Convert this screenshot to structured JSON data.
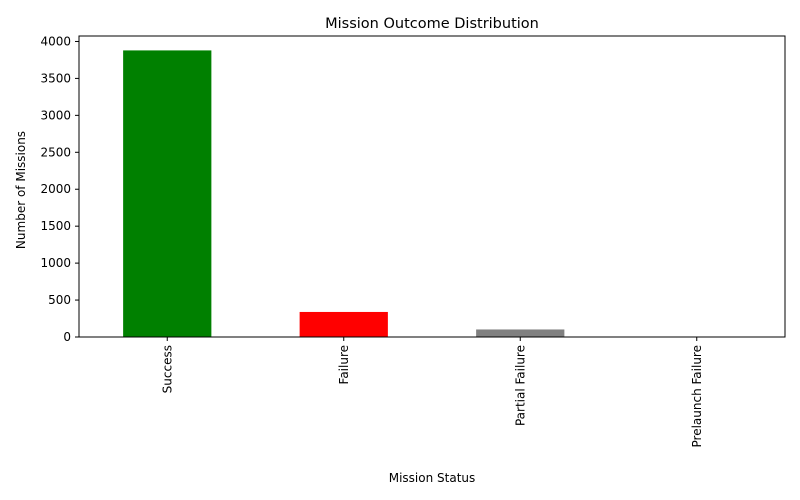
{
  "chart_data": {
    "type": "bar",
    "title": "Mission Outcome Distribution",
    "xlabel": "Mission Status",
    "ylabel": "Number of Missions",
    "categories": [
      "Success",
      "Failure",
      "Partial Failure",
      "Prelaunch Failure"
    ],
    "values": [
      3879,
      339,
      102,
      4
    ],
    "colors": [
      "#008000",
      "#ff0000",
      "#808080",
      "#0000ff"
    ],
    "ylim": [
      0,
      4074
    ],
    "yticks": [
      0,
      500,
      1000,
      1500,
      2000,
      2500,
      3000,
      3500,
      4000
    ],
    "grid": false,
    "legend": "none"
  }
}
